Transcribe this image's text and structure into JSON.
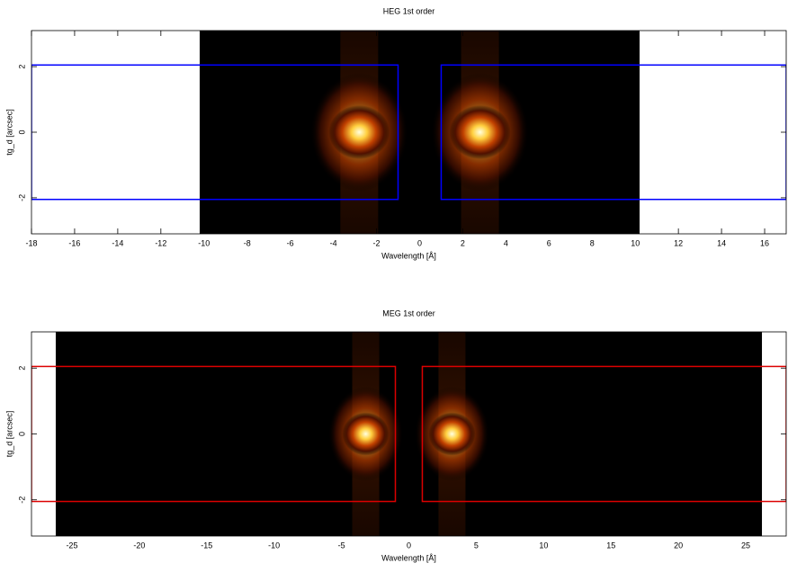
{
  "chart_data": [
    {
      "type": "image",
      "title": "HEG 1st order",
      "xlabel": "Wavelength [Å]",
      "ylabel": "tg_d [arcsec]",
      "xlim": [
        -18,
        17
      ],
      "ylim": [
        -3.1,
        3.1
      ],
      "xticks": [
        -18,
        -16,
        -14,
        -12,
        -10,
        -8,
        -6,
        -4,
        -2,
        0,
        2,
        4,
        6,
        8,
        10,
        12,
        14,
        16
      ],
      "yticks": [
        -2,
        0,
        2
      ],
      "image_xlim": [
        -10.2,
        10.2
      ],
      "region_color": "#0000ff",
      "regions": [
        {
          "x": [
            -18,
            -1
          ],
          "y": [
            -2.05,
            2.05
          ]
        },
        {
          "x": [
            1,
            17
          ],
          "y": [
            -2.05,
            2.05
          ]
        }
      ]
    },
    {
      "type": "image",
      "title": "MEG 1st order",
      "xlabel": "Wavelength [Å]",
      "ylabel": "tg_d [arcsec]",
      "xlim": [
        -28,
        28
      ],
      "ylim": [
        -3.1,
        3.1
      ],
      "xticks": [
        -25,
        -20,
        -15,
        -10,
        -5,
        0,
        5,
        10,
        15,
        20,
        25
      ],
      "yticks": [
        -2,
        0,
        2
      ],
      "image_xlim": [
        -26.2,
        26.2
      ],
      "region_color": "#dd0000",
      "regions": [
        {
          "x": [
            -28,
            -1
          ],
          "y": [
            -2.05,
            2.05
          ]
        },
        {
          "x": [
            1,
            28
          ],
          "y": [
            -2.05,
            2.05
          ]
        }
      ]
    }
  ]
}
